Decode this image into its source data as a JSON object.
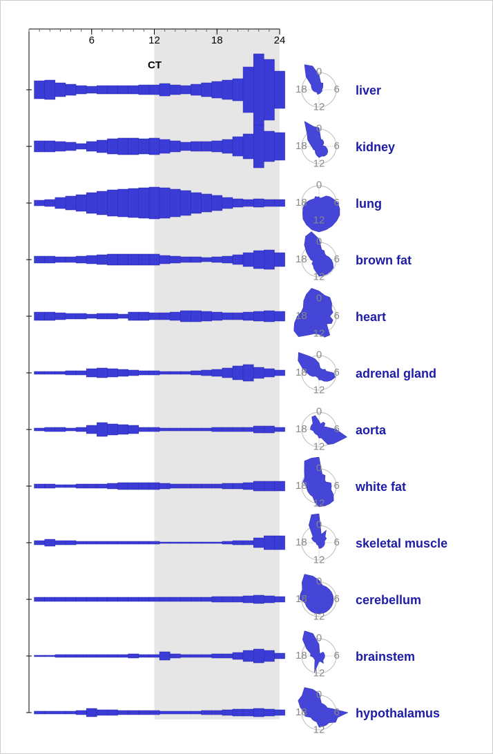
{
  "chart_data": {
    "type": "bar",
    "xlabel": "CT",
    "xlim": [
      0,
      24
    ],
    "xticks": [
      6,
      12,
      18,
      24
    ],
    "shaded": [
      12,
      24
    ],
    "x": [
      1,
      2,
      3,
      4,
      5,
      6,
      7,
      8,
      9,
      10,
      11,
      12,
      13,
      14,
      15,
      16,
      17,
      18,
      19,
      20,
      21,
      22,
      23,
      24
    ],
    "radar_ticks": [
      0,
      6,
      12,
      18
    ],
    "color": "#3b3bd6",
    "label_color": "#1c1ca6",
    "series": [
      {
        "name": "liver",
        "values": [
          26,
          28,
          20,
          16,
          12,
          10,
          12,
          12,
          12,
          12,
          14,
          14,
          18,
          14,
          12,
          16,
          20,
          24,
          28,
          32,
          66,
          104,
          88,
          54
        ]
      },
      {
        "name": "kidney",
        "values": [
          16,
          16,
          14,
          12,
          8,
          14,
          18,
          22,
          24,
          24,
          22,
          24,
          20,
          16,
          12,
          14,
          14,
          16,
          20,
          28,
          36,
          62,
          44,
          40
        ]
      },
      {
        "name": "lung",
        "values": [
          8,
          10,
          16,
          20,
          24,
          30,
          34,
          38,
          40,
          42,
          44,
          46,
          44,
          40,
          36,
          30,
          26,
          22,
          16,
          12,
          10,
          12,
          10,
          10
        ]
      },
      {
        "name": "brown fat",
        "values": [
          10,
          10,
          8,
          8,
          10,
          12,
          14,
          16,
          16,
          16,
          16,
          16,
          12,
          10,
          8,
          8,
          6,
          8,
          10,
          14,
          20,
          26,
          28,
          20
        ]
      },
      {
        "name": "heart",
        "values": [
          12,
          12,
          10,
          8,
          8,
          6,
          8,
          8,
          6,
          12,
          12,
          10,
          10,
          12,
          16,
          16,
          14,
          12,
          10,
          10,
          12,
          14,
          16,
          14
        ]
      },
      {
        "name": "adrenal gland",
        "values": [
          4,
          4,
          4,
          6,
          6,
          12,
          14,
          12,
          10,
          8,
          6,
          6,
          4,
          4,
          4,
          6,
          8,
          10,
          14,
          20,
          24,
          16,
          12,
          8
        ]
      },
      {
        "name": "aorta",
        "values": [
          4,
          6,
          6,
          4,
          6,
          12,
          20,
          16,
          14,
          12,
          6,
          6,
          4,
          4,
          4,
          4,
          4,
          6,
          6,
          6,
          6,
          10,
          10,
          6
        ]
      },
      {
        "name": "white fat",
        "values": [
          6,
          6,
          4,
          4,
          6,
          6,
          6,
          8,
          10,
          10,
          10,
          10,
          8,
          6,
          6,
          6,
          6,
          6,
          8,
          8,
          10,
          14,
          14,
          14
        ]
      },
      {
        "name": "skeletal muscle",
        "values": [
          6,
          10,
          6,
          6,
          4,
          4,
          4,
          4,
          4,
          4,
          4,
          4,
          2,
          2,
          2,
          2,
          2,
          2,
          4,
          6,
          6,
          14,
          20,
          20
        ]
      },
      {
        "name": "cerebellum",
        "values": [
          6,
          6,
          6,
          6,
          6,
          6,
          6,
          6,
          6,
          6,
          6,
          6,
          6,
          6,
          6,
          6,
          6,
          8,
          8,
          8,
          10,
          12,
          10,
          8
        ]
      },
      {
        "name": "brainstem",
        "values": [
          2,
          2,
          4,
          4,
          4,
          4,
          4,
          4,
          4,
          6,
          4,
          4,
          12,
          6,
          4,
          4,
          4,
          6,
          6,
          10,
          16,
          20,
          16,
          8
        ]
      },
      {
        "name": "hypothalamus",
        "values": [
          4,
          4,
          4,
          4,
          6,
          12,
          8,
          8,
          6,
          6,
          6,
          6,
          4,
          4,
          4,
          4,
          6,
          6,
          8,
          10,
          10,
          12,
          10,
          8
        ]
      }
    ]
  }
}
